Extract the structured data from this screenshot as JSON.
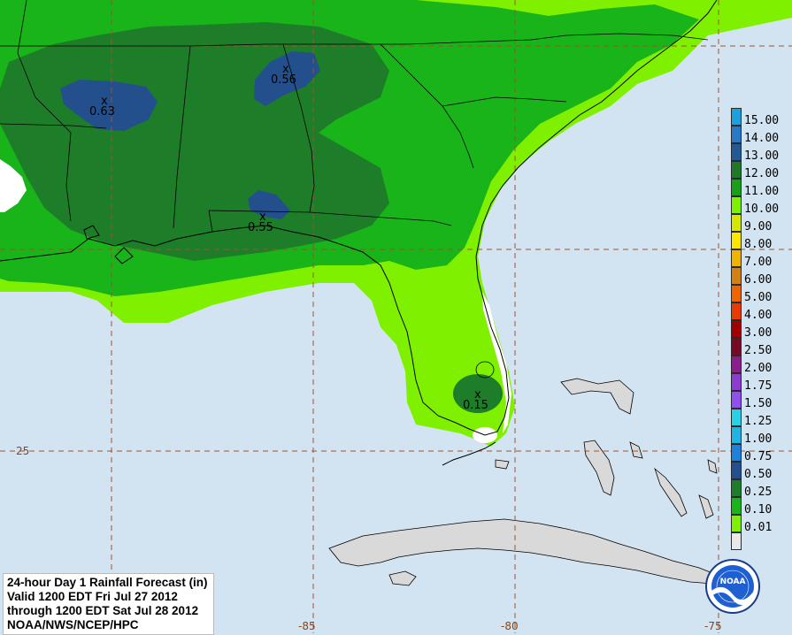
{
  "title_lines": [
    "24-hour Day 1 Rainfall Forecast (in)",
    "Valid 1200 EDT Fri Jul 27 2012",
    "through 1200 EDT Sat Jul 28 2012",
    "NOAA/NWS/NCEP/HPC"
  ],
  "grid_labels": {
    "lat_25": "25",
    "lon_85": "-85",
    "lon_80": "-80",
    "lon_75": "-75"
  },
  "maxima": [
    {
      "marker": "x",
      "value": "0.63"
    },
    {
      "marker": "x",
      "value": "0.56"
    },
    {
      "marker": "x",
      "value": "0.55"
    },
    {
      "marker": "x",
      "value": "0.15"
    }
  ],
  "legend": [
    {
      "label": "15.00",
      "color": "#1ea0dc"
    },
    {
      "label": "14.00",
      "color": "#2a78c8"
    },
    {
      "label": "13.00",
      "color": "#235a96"
    },
    {
      "label": "12.00",
      "color": "#1e7828"
    },
    {
      "label": "11.00",
      "color": "#19a019"
    },
    {
      "label": "10.00",
      "color": "#7cf200"
    },
    {
      "label": "9.00",
      "color": "#d6e600"
    },
    {
      "label": "8.00",
      "color": "#ffe600"
    },
    {
      "label": "7.00",
      "color": "#f0b400"
    },
    {
      "label": "6.00",
      "color": "#d28214"
    },
    {
      "label": "5.00",
      "color": "#f06400"
    },
    {
      "label": "4.00",
      "color": "#e63c00"
    },
    {
      "label": "3.00",
      "color": "#a00000"
    },
    {
      "label": "2.50",
      "color": "#780a28"
    },
    {
      "label": "2.00",
      "color": "#8c1e8c"
    },
    {
      "label": "1.75",
      "color": "#8c3cd2"
    },
    {
      "label": "1.50",
      "color": "#9050f0"
    },
    {
      "label": "1.25",
      "color": "#28d2e6"
    },
    {
      "label": "1.00",
      "color": "#1eb4e6"
    },
    {
      "label": "0.75",
      "color": "#1e82dc"
    },
    {
      "label": "0.50",
      "color": "#23508c"
    },
    {
      "label": "0.25",
      "color": "#1e7d28"
    },
    {
      "label": "0.10",
      "color": "#19b419"
    },
    {
      "label": "0.01",
      "color": "#7ff000"
    },
    {
      "label": "",
      "color": "#e8e8e8"
    }
  ],
  "colors": {
    "ocean": "#d2e4f2",
    "land_nodata": "#d9d9d9",
    "precip_001": "#7ff000",
    "precip_010": "#19b419",
    "precip_025": "#1e7d28",
    "precip_050": "#23508c",
    "grid": "#a0522d"
  },
  "logo": {
    "text": "NOAA"
  }
}
